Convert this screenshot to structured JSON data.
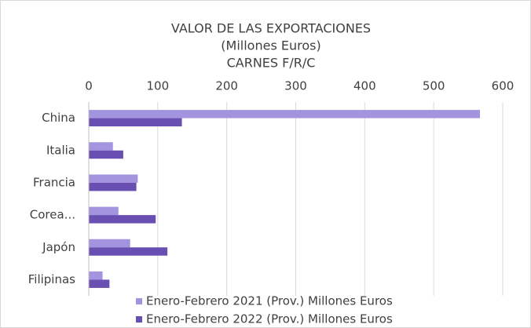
{
  "chart_data": {
    "type": "hbar",
    "title": "VALOR DE LAS EXPORTACIONES",
    "subtitle": [
      "(Millones Euros)",
      "CARNES F/R/C"
    ],
    "categories": [
      "China",
      "Italia",
      "Francia",
      "Corea...",
      "Japón",
      "Filipinas"
    ],
    "series": [
      {
        "name": "Enero-Febrero 2021 (Prov.) Millones Euros",
        "color": "#a394e0",
        "values": [
          567,
          35,
          71,
          43,
          60,
          20
        ]
      },
      {
        "name": "Enero-Febrero 2022 (Prov.) Millones Euros",
        "color": "#6a4fb3",
        "values": [
          135,
          50,
          69,
          97,
          114,
          30
        ]
      }
    ],
    "xlim": [
      0,
      600
    ],
    "xticks": [
      0,
      100,
      200,
      300,
      400,
      500,
      600
    ],
    "grid": true
  }
}
